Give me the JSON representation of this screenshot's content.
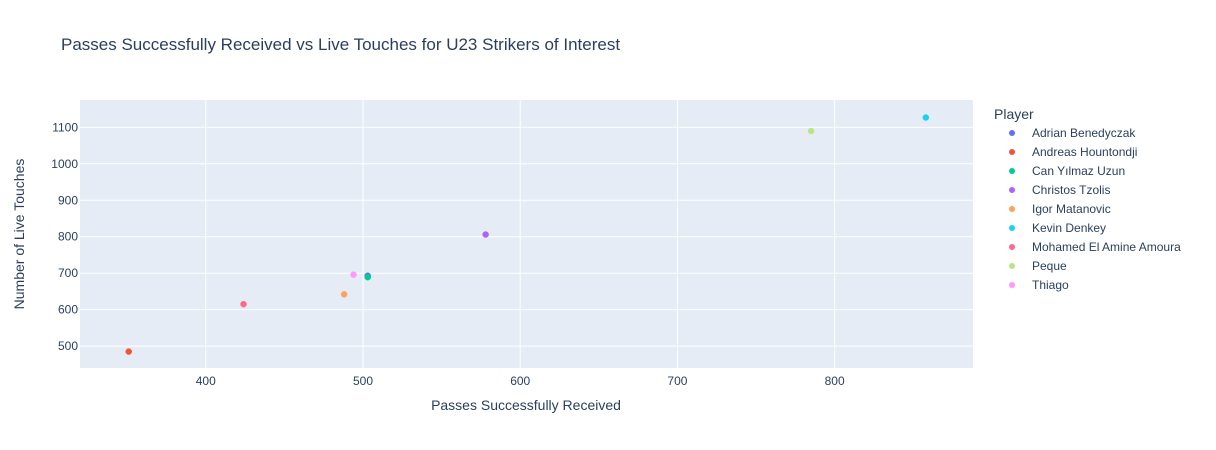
{
  "chart_data": {
    "type": "scatter",
    "title": "Passes Successfully Received vs Live Touches for U23 Strikers of Interest",
    "xlabel": "Passes Successfully Received",
    "ylabel": "Number of Live Touches",
    "xlim": [
      320,
      888
    ],
    "ylim": [
      440,
      1175
    ],
    "xticks": [
      400,
      500,
      600,
      700,
      800
    ],
    "yticks": [
      500,
      600,
      700,
      800,
      900,
      1000,
      1100
    ],
    "grid": true,
    "legend_title": "Player",
    "legend_position": "right",
    "series": [
      {
        "name": "Adrian Benedyczak",
        "color": "#636efa",
        "points": [
          [
            503,
            693
          ]
        ]
      },
      {
        "name": "Andreas Hountondji",
        "color": "#ef553b",
        "points": [
          [
            351,
            485
          ]
        ]
      },
      {
        "name": "Can Yılmaz Uzun",
        "color": "#00cc96",
        "points": [
          [
            503,
            689
          ]
        ]
      },
      {
        "name": "Christos Tzolis",
        "color": "#ab63fa",
        "points": [
          [
            578,
            806
          ]
        ]
      },
      {
        "name": "Igor Matanovic",
        "color": "#ffa15a",
        "points": [
          [
            488,
            642
          ]
        ]
      },
      {
        "name": "Kevin Denkey",
        "color": "#19d3f3",
        "points": [
          [
            858,
            1127
          ]
        ]
      },
      {
        "name": "Mohamed El Amine Amoura",
        "color": "#ff6692",
        "points": [
          [
            424,
            615
          ]
        ]
      },
      {
        "name": "Peque",
        "color": "#b6e880",
        "points": [
          [
            785,
            1090
          ]
        ]
      },
      {
        "name": "Thiago",
        "color": "#ff97ff",
        "points": [
          [
            494,
            696
          ]
        ]
      }
    ]
  }
}
